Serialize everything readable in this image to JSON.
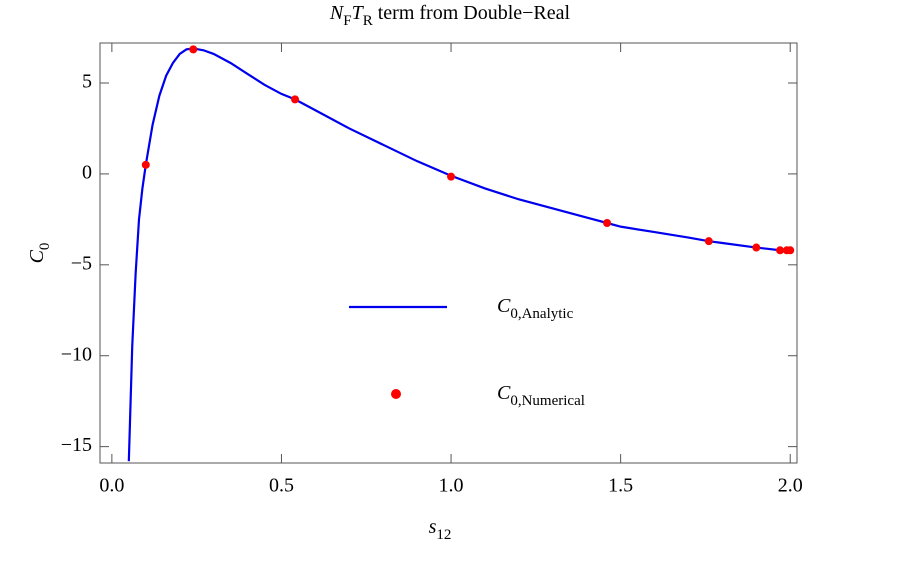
{
  "chart_data": {
    "type": "line",
    "title": [
      "N",
      "F",
      "T",
      "R",
      " term from Double−Real"
    ],
    "x_label": [
      "s",
      "12"
    ],
    "y_label": [
      "C",
      "0"
    ],
    "xlim": [
      -0.035,
      2.02
    ],
    "ylim": [
      -15.9,
      7.2
    ],
    "xticks": [
      {
        "value": 0,
        "label": "0.0"
      },
      0.5,
      {
        "value": 1,
        "label": "1.0"
      },
      1.5,
      {
        "value": 2,
        "label": "2.0"
      }
    ],
    "yticks": [
      5,
      0,
      {
        "value": -5,
        "label": "−5"
      },
      {
        "value": -10,
        "label": "−10"
      },
      {
        "value": -15,
        "label": "−15"
      }
    ],
    "series": [
      {
        "name": [
          "C",
          "0,Analytic"
        ],
        "color": "#0000ee",
        "mark": "line",
        "x": [
          0.05,
          0.06,
          0.07,
          0.08,
          0.09,
          0.1,
          0.12,
          0.14,
          0.16,
          0.18,
          0.2,
          0.22,
          0.24,
          0.27,
          0.3,
          0.35,
          0.4,
          0.45,
          0.5,
          0.54,
          0.6,
          0.7,
          0.8,
          0.9,
          1.0,
          1.1,
          1.2,
          1.3,
          1.4,
          1.46,
          1.5,
          1.6,
          1.7,
          1.76,
          1.8,
          1.9,
          1.97,
          2.0
        ],
        "values": [
          -15.8,
          -9.5,
          -5.5,
          -2.5,
          -0.8,
          0.5,
          2.7,
          4.3,
          5.4,
          6.1,
          6.6,
          6.85,
          6.9,
          6.8,
          6.6,
          6.1,
          5.5,
          4.9,
          4.4,
          4.1,
          3.5,
          2.5,
          1.6,
          0.7,
          -0.1,
          -0.8,
          -1.4,
          -1.9,
          -2.4,
          -2.7,
          -2.9,
          -3.2,
          -3.5,
          -3.7,
          -3.8,
          -4.05,
          -4.2,
          -4.2
        ]
      },
      {
        "name": [
          "C",
          "0,Numerical"
        ],
        "color": "#ff0000",
        "mark": "point",
        "x": [
          0.1,
          0.24,
          0.54,
          1.0,
          1.46,
          1.76,
          1.9,
          1.97,
          1.99,
          2.0
        ],
        "values": [
          0.5,
          6.85,
          4.1,
          -0.15,
          -2.7,
          -3.7,
          -4.05,
          -4.2,
          -4.2,
          -4.2
        ]
      }
    ]
  }
}
